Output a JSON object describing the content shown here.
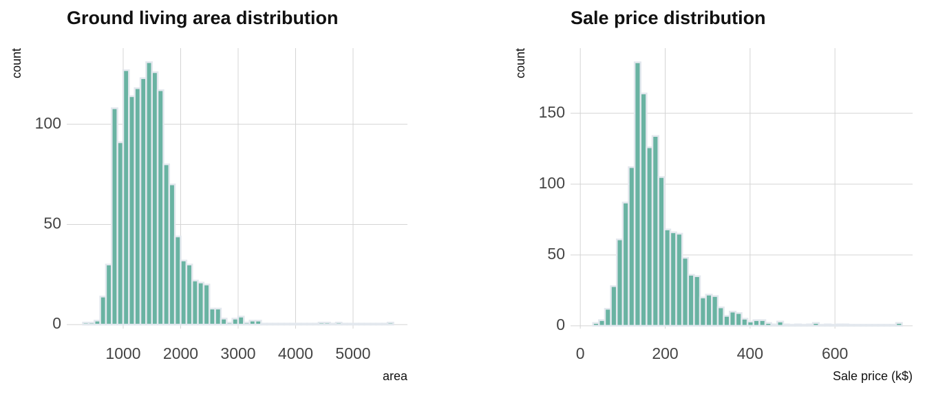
{
  "chart_data": [
    {
      "type": "histogram",
      "title": "Ground living area distribution",
      "x_label": "area",
      "y_label": "count",
      "bins": [
        300,
        400,
        500,
        600,
        700,
        800,
        900,
        1000,
        1100,
        1200,
        1300,
        1400,
        1500,
        1600,
        1700,
        1800,
        1900,
        2000,
        2100,
        2200,
        2300,
        2400,
        2500,
        2600,
        2700,
        2800,
        2900,
        3000,
        3100,
        3200,
        3300,
        3400,
        3500,
        3600,
        3700,
        3800,
        3900,
        4000,
        4100,
        4200,
        4300,
        4400,
        4500,
        4600,
        4700,
        4800,
        4900,
        5000,
        5100,
        5200,
        5300,
        5400,
        5500,
        5600,
        5700
      ],
      "values": [
        1,
        1,
        2,
        14,
        30,
        108,
        91,
        127,
        114,
        118,
        123,
        131,
        126,
        117,
        80,
        70,
        44,
        32,
        30,
        22,
        21,
        20,
        8,
        8,
        3,
        1,
        3,
        4,
        1,
        2,
        2,
        0,
        0,
        0,
        0,
        0,
        0,
        0,
        0,
        0,
        0,
        1,
        1,
        0,
        1,
        0,
        0,
        0,
        0,
        0,
        0,
        0,
        0,
        1
      ],
      "color": "#69b3a2",
      "edge_color": "#e3e8ee",
      "xlim": [
        18,
        5946
      ],
      "ylim": [
        -2,
        138
      ],
      "xticks": [
        1000,
        2000,
        3000,
        4000,
        5000
      ],
      "yticks": [
        0,
        50,
        100
      ],
      "grid": true
    },
    {
      "type": "histogram",
      "title": "Sale price distribution",
      "x_label": "Sale price (k$)",
      "y_label": "count",
      "bins": [
        30,
        44,
        58,
        72,
        86,
        100,
        114,
        128,
        142,
        156,
        170,
        184,
        198,
        212,
        226,
        240,
        254,
        268,
        282,
        296,
        310,
        324,
        338,
        352,
        366,
        380,
        394,
        408,
        422,
        436,
        450,
        464,
        478,
        492,
        506,
        520,
        534,
        548,
        562,
        576,
        590,
        604,
        618,
        632,
        646,
        660,
        674,
        688,
        702,
        716,
        730,
        744,
        758
      ],
      "values": [
        2,
        4,
        12,
        28,
        61,
        87,
        112,
        186,
        164,
        126,
        134,
        105,
        68,
        66,
        65,
        48,
        36,
        35,
        20,
        22,
        21,
        13,
        7,
        10,
        9,
        5,
        3,
        4,
        4,
        2,
        1,
        3,
        1,
        0,
        1,
        0,
        1,
        2,
        0,
        1,
        0,
        1,
        1,
        0,
        0,
        0,
        0,
        0,
        0,
        0,
        0,
        2
      ],
      "color": "#69b3a2",
      "edge_color": "#e3e8ee",
      "xlim": [
        -23,
        783
      ],
      "ylim": [
        -2,
        196
      ],
      "xticks": [
        0,
        200,
        400,
        600
      ],
      "yticks": [
        0,
        50,
        100,
        150
      ],
      "grid": true
    }
  ]
}
